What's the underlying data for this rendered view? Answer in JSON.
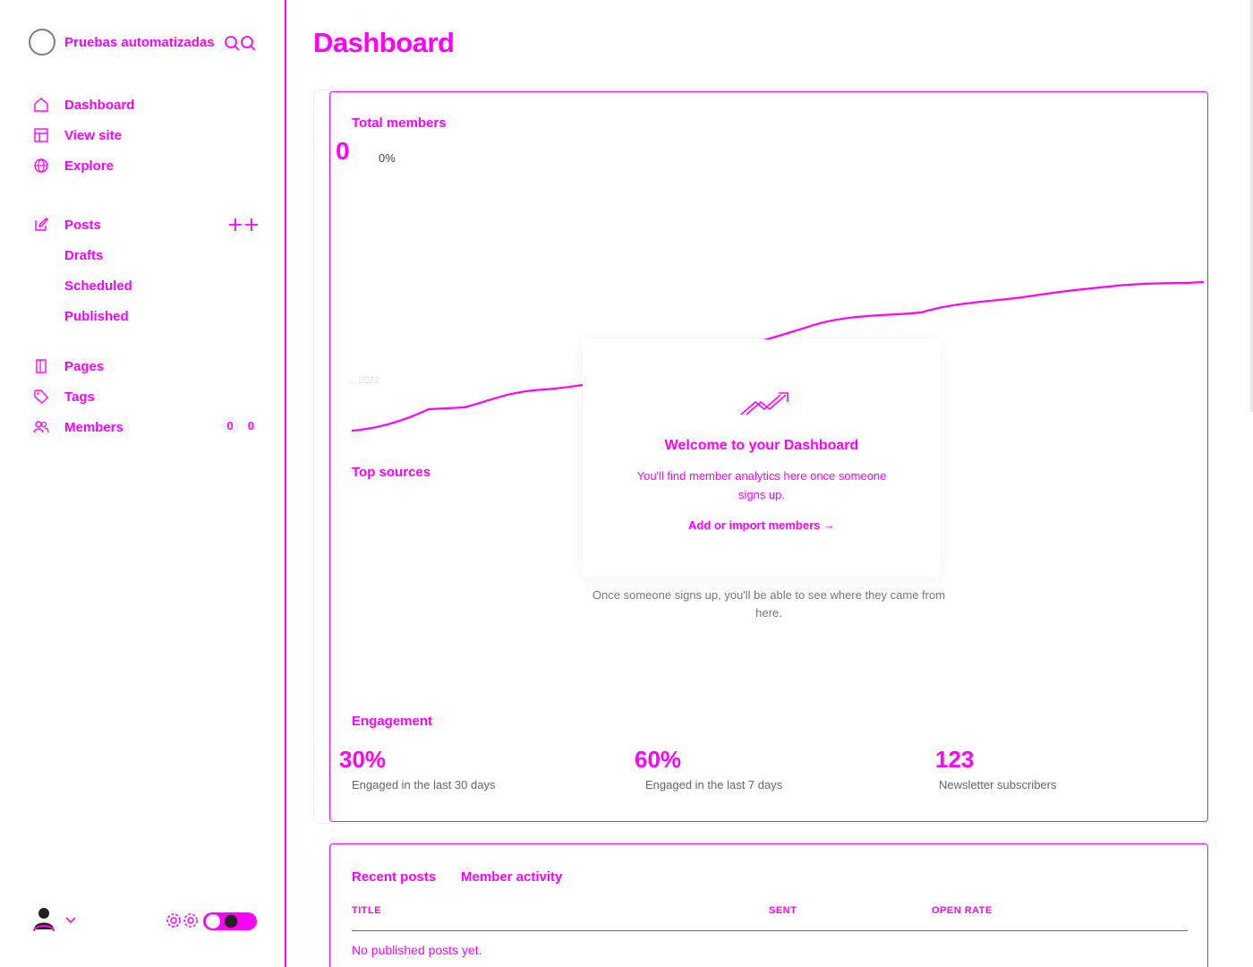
{
  "sidebar": {
    "site_name": "Pruebas automatizadas",
    "items": [
      {
        "label": "Dashboard",
        "icon": "home-icon"
      },
      {
        "label": "View site",
        "icon": "layout-icon"
      },
      {
        "label": "Explore",
        "icon": "globe-icon"
      }
    ],
    "posts": {
      "label": "Posts",
      "icon": "edit-icon",
      "sub": [
        "Drafts",
        "Scheduled",
        "Published"
      ]
    },
    "items2": [
      {
        "label": "Pages",
        "icon": "pages-icon"
      },
      {
        "label": "Tags",
        "icon": "tag-icon"
      },
      {
        "label": "Members",
        "icon": "members-icon",
        "count": "0"
      }
    ]
  },
  "main": {
    "title": "Dashboard",
    "total_members": {
      "label": "Total members",
      "value": "0",
      "change": "0%",
      "axis_start": "…2022"
    },
    "welcome": {
      "title": "Welcome to your Dashboard",
      "text": "You'll find member analytics here once someone signs up.",
      "link": "Add or import members →"
    },
    "top_sources": {
      "label": "Top sources",
      "empty": "Once someone signs up, you'll be able to see where they came from here."
    },
    "engagement": {
      "label": "Engagement",
      "metrics": [
        {
          "value": "30%",
          "label": "Engaged in the last 30 days"
        },
        {
          "value": "60%",
          "label": "Engaged in the last 7 days"
        },
        {
          "value": "123",
          "label": "Newsletter subscribers"
        }
      ]
    },
    "recent": {
      "tabs": [
        "Recent posts",
        "Member activity"
      ],
      "columns": [
        "TITLE",
        "SENT",
        "OPEN RATE"
      ],
      "empty": "No published posts yet."
    }
  },
  "colors": {
    "accent": "#ff00ff"
  }
}
